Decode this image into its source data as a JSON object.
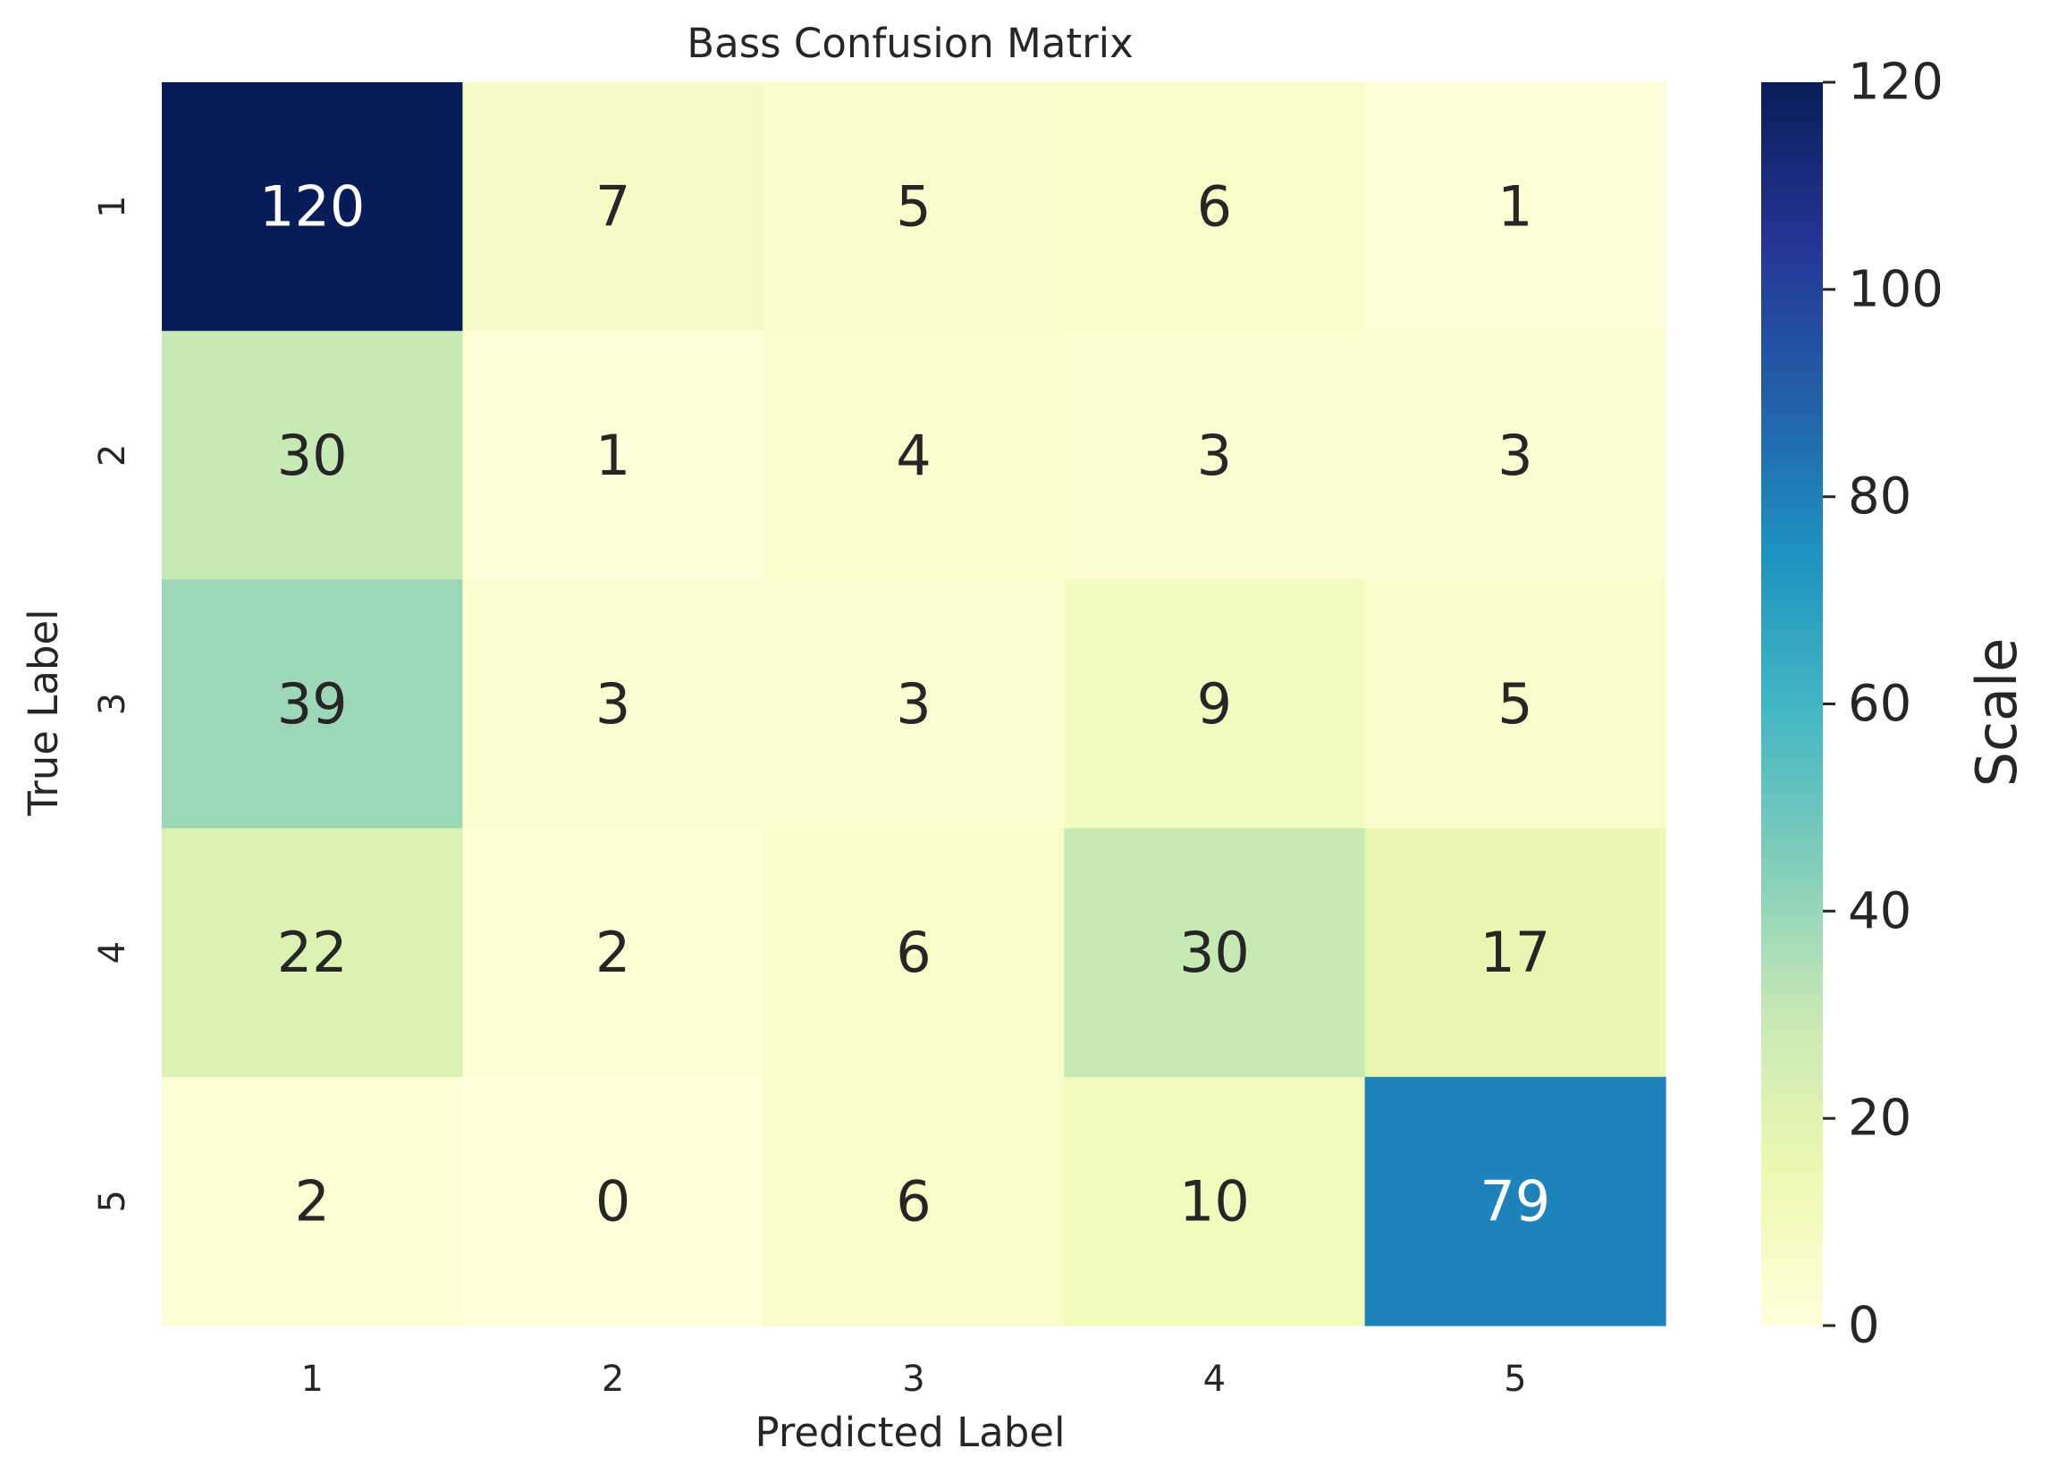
{
  "chart_data": {
    "type": "heatmap",
    "title": "Bass Confusion Matrix",
    "xlabel": "Predicted Label",
    "ylabel": "True Label",
    "x_categories": [
      "1",
      "2",
      "3",
      "4",
      "5"
    ],
    "y_categories": [
      "1",
      "2",
      "3",
      "4",
      "5"
    ],
    "values": [
      [
        120,
        7,
        5,
        6,
        1
      ],
      [
        30,
        1,
        4,
        3,
        3
      ],
      [
        39,
        3,
        3,
        9,
        5
      ],
      [
        22,
        2,
        6,
        30,
        17
      ],
      [
        2,
        0,
        6,
        10,
        79
      ]
    ],
    "colormap": "YlGnBu",
    "vmin": 0,
    "vmax": 120,
    "colorbar": {
      "label": "Scale",
      "ticks": [
        0,
        20,
        40,
        60,
        80,
        100,
        120
      ]
    },
    "annotations": true,
    "colors": {
      "text_dark": "#262626",
      "text_light": "#ffffff",
      "background": "#ffffff"
    }
  }
}
